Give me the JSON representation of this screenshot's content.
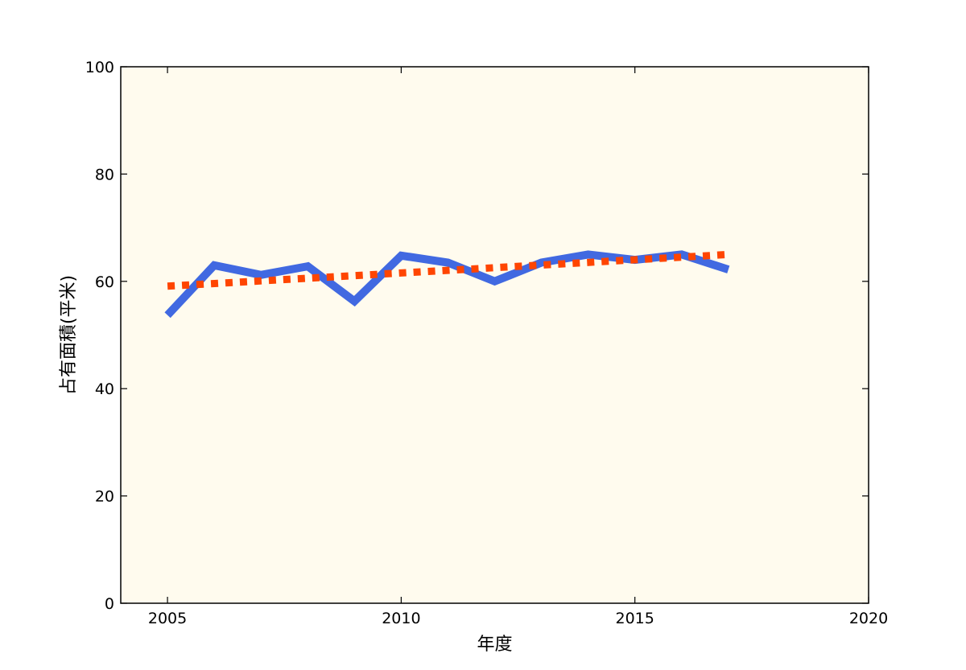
{
  "chart_data": {
    "type": "line",
    "title": "",
    "xlabel": "年度",
    "ylabel": "占有面積(平米)",
    "xlim": [
      2004,
      2020
    ],
    "ylim": [
      0,
      100
    ],
    "xticks": [
      2005,
      2010,
      2015,
      2020
    ],
    "yticks": [
      0,
      20,
      40,
      60,
      80,
      100
    ],
    "grid": false,
    "legend": "none",
    "background_color": "#fffbee",
    "series": [
      {
        "style": "solid",
        "color": "#4169e1",
        "x": [
          2005,
          2006,
          2007,
          2008,
          2009,
          2010,
          2011,
          2012,
          2013,
          2014,
          2015,
          2016,
          2017
        ],
        "y": [
          53.7,
          63.0,
          61.2,
          62.8,
          56.3,
          64.8,
          63.5,
          60.0,
          63.5,
          65.0,
          64.0,
          65.0,
          62.2
        ]
      },
      {
        "style": "dotted",
        "color": "#ff4500",
        "x": [
          2005,
          2017
        ],
        "y": [
          59.1,
          65.0
        ]
      }
    ]
  }
}
